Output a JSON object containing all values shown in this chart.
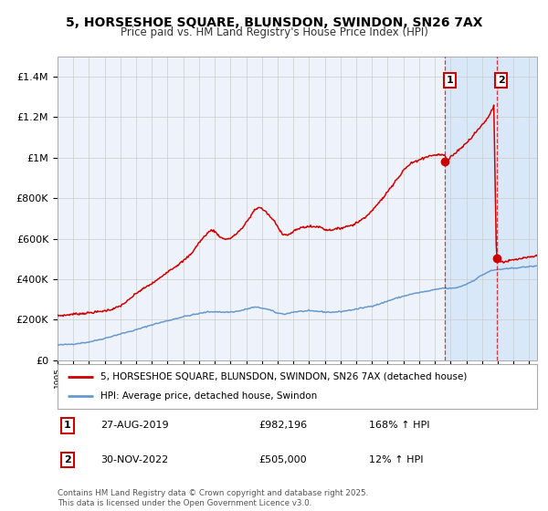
{
  "title": "5, HORSESHOE SQUARE, BLUNSDON, SWINDON, SN26 7AX",
  "subtitle": "Price paid vs. HM Land Registry's House Price Index (HPI)",
  "legend_line1": "5, HORSESHOE SQUARE, BLUNSDON, SWINDON, SN26 7AX (detached house)",
  "legend_line2": "HPI: Average price, detached house, Swindon",
  "annotation1_label": "1",
  "annotation1_date": "27-AUG-2019",
  "annotation1_price": "£982,196",
  "annotation1_hpi": "168% ↑ HPI",
  "annotation2_label": "2",
  "annotation2_date": "30-NOV-2022",
  "annotation2_price": "£505,000",
  "annotation2_hpi": "12% ↑ HPI",
  "footer": "Contains HM Land Registry data © Crown copyright and database right 2025.\nThis data is licensed under the Open Government Licence v3.0.",
  "red_color": "#cc0000",
  "blue_color": "#6699cc",
  "background_color": "#ffffff",
  "plot_bg_color": "#eef2fa",
  "grid_color": "#cccccc",
  "highlight_bg": "#d8e8f8",
  "ylim": [
    0,
    1500000
  ],
  "yticks": [
    0,
    200000,
    400000,
    600000,
    800000,
    1000000,
    1200000,
    1400000
  ],
  "xlim_start": 1995.0,
  "xlim_end": 2025.5,
  "xticks": [
    1995,
    1996,
    1997,
    1998,
    1999,
    2000,
    2001,
    2002,
    2003,
    2004,
    2005,
    2006,
    2007,
    2008,
    2009,
    2010,
    2011,
    2012,
    2013,
    2014,
    2015,
    2016,
    2017,
    2018,
    2019,
    2020,
    2021,
    2022,
    2023,
    2024,
    2025
  ],
  "marker1_x": 2019.65,
  "marker1_y": 982196,
  "marker2_x": 2022.917,
  "marker2_y": 505000,
  "vline1_x": 2019.65,
  "vline2_x": 2022.917,
  "highlight_start": 2019.65,
  "highlight_end": 2025.5,
  "blue_anchors_t": [
    1995.0,
    1996.0,
    1997.0,
    1998.0,
    1999.0,
    2000.0,
    2001.0,
    2002.0,
    2003.0,
    2004.0,
    2004.5,
    2005.0,
    2005.5,
    2006.0,
    2006.5,
    2007.0,
    2007.5,
    2008.0,
    2008.5,
    2009.0,
    2009.5,
    2010.0,
    2010.5,
    2011.0,
    2011.5,
    2012.0,
    2012.5,
    2013.0,
    2013.5,
    2014.0,
    2014.5,
    2015.0,
    2015.5,
    2016.0,
    2016.5,
    2017.0,
    2017.5,
    2018.0,
    2018.5,
    2019.0,
    2019.5,
    2020.0,
    2020.5,
    2021.0,
    2021.5,
    2022.0,
    2022.5,
    2023.0,
    2023.5,
    2024.0,
    2024.5,
    2025.0,
    2025.5
  ],
  "blue_anchors_v": [
    75000,
    80000,
    90000,
    108000,
    130000,
    150000,
    175000,
    195000,
    215000,
    230000,
    238000,
    240000,
    237000,
    238000,
    242000,
    252000,
    262000,
    258000,
    248000,
    232000,
    228000,
    238000,
    242000,
    243000,
    242000,
    238000,
    237000,
    240000,
    246000,
    252000,
    260000,
    268000,
    278000,
    292000,
    305000,
    316000,
    326000,
    334000,
    340000,
    348000,
    356000,
    354000,
    360000,
    375000,
    395000,
    420000,
    440000,
    448000,
    450000,
    455000,
    458000,
    462000,
    465000
  ],
  "red_anchors_t": [
    1995.0,
    1995.5,
    1996.0,
    1996.5,
    1997.0,
    1997.5,
    1998.0,
    1998.5,
    1999.0,
    1999.5,
    2000.0,
    2000.5,
    2001.0,
    2001.5,
    2002.0,
    2002.5,
    2003.0,
    2003.5,
    2004.0,
    2004.5,
    2004.8,
    2005.0,
    2005.3,
    2005.5,
    2005.8,
    2006.0,
    2006.3,
    2006.5,
    2006.8,
    2007.0,
    2007.3,
    2007.5,
    2007.8,
    2008.0,
    2008.3,
    2008.5,
    2008.8,
    2009.0,
    2009.3,
    2009.5,
    2009.8,
    2010.0,
    2010.3,
    2010.5,
    2010.8,
    2011.0,
    2011.3,
    2011.5,
    2011.8,
    2012.0,
    2012.3,
    2012.5,
    2012.8,
    2013.0,
    2013.3,
    2013.5,
    2013.8,
    2014.0,
    2014.3,
    2014.5,
    2014.8,
    2015.0,
    2015.3,
    2015.5,
    2015.8,
    2016.0,
    2016.3,
    2016.5,
    2016.8,
    2017.0,
    2017.3,
    2017.5,
    2017.8,
    2018.0,
    2018.3,
    2018.5,
    2018.8,
    2019.0,
    2019.3,
    2019.5,
    2019.65,
    2019.8,
    2019.9,
    2020.0,
    2020.3,
    2020.5,
    2020.8,
    2021.0,
    2021.3,
    2021.5,
    2021.8,
    2022.0,
    2022.3,
    2022.5,
    2022.7,
    2022.75,
    2022.917,
    2023.0,
    2023.2,
    2023.4,
    2023.6,
    2023.8,
    2024.0,
    2024.3,
    2024.5,
    2024.8,
    2025.0,
    2025.3,
    2025.5
  ],
  "red_anchors_v": [
    220000,
    222000,
    228000,
    230000,
    234000,
    238000,
    244000,
    252000,
    268000,
    295000,
    330000,
    355000,
    378000,
    405000,
    438000,
    462000,
    490000,
    525000,
    580000,
    625000,
    643000,
    635000,
    612000,
    600000,
    598000,
    602000,
    618000,
    635000,
    655000,
    680000,
    712000,
    740000,
    755000,
    748000,
    728000,
    710000,
    685000,
    658000,
    625000,
    618000,
    622000,
    635000,
    648000,
    655000,
    658000,
    660000,
    658000,
    660000,
    655000,
    645000,
    642000,
    645000,
    648000,
    652000,
    658000,
    663000,
    668000,
    678000,
    690000,
    705000,
    720000,
    740000,
    762000,
    785000,
    808000,
    835000,
    862000,
    888000,
    912000,
    938000,
    958000,
    972000,
    982000,
    990000,
    998000,
    1005000,
    1010000,
    1012000,
    1015000,
    1012000,
    1010000,
    982196,
    990000,
    1005000,
    1020000,
    1038000,
    1055000,
    1075000,
    1095000,
    1118000,
    1140000,
    1162000,
    1188000,
    1215000,
    1248000,
    1260000,
    505000,
    498000,
    488000,
    485000,
    488000,
    492000,
    495000,
    498000,
    502000,
    505000,
    508000,
    512000,
    515000
  ]
}
